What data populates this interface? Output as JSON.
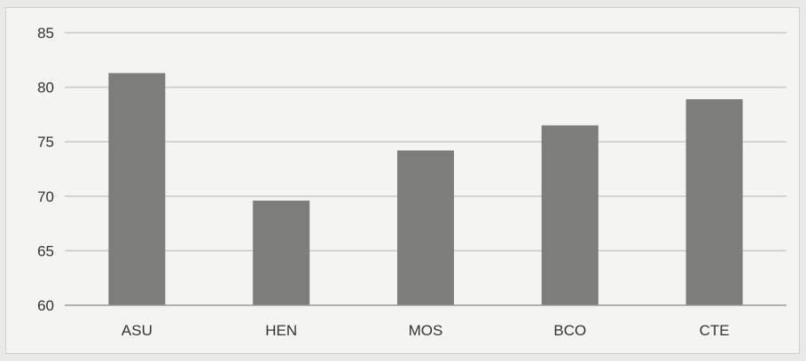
{
  "chart_data": {
    "type": "bar",
    "title": "",
    "xlabel": "",
    "ylabel": "",
    "categories": [
      "ASU",
      "HEN",
      "MOS",
      "BCO",
      "CTE"
    ],
    "values": [
      81.3,
      69.6,
      74.2,
      76.5,
      78.9
    ],
    "ylim": [
      60,
      85
    ],
    "yticks": [
      60,
      65,
      70,
      75,
      80,
      85
    ],
    "grid": true,
    "legend": "none",
    "colors": {
      "bar": "#7d7d7b",
      "grid": "#c8c8c6",
      "background": "#f4f4f2"
    }
  }
}
